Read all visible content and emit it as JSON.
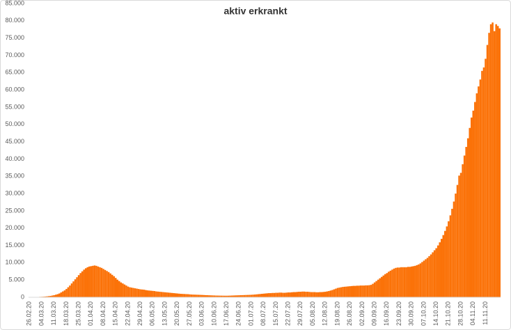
{
  "chart_data": {
    "type": "bar",
    "title": "aktiv erkrankt",
    "color": "#fb7208",
    "categories": [
      "26.02.20",
      null,
      null,
      null,
      null,
      null,
      null,
      "04.03.20",
      null,
      null,
      null,
      null,
      null,
      null,
      "11.03.20",
      null,
      null,
      null,
      null,
      null,
      null,
      "18.03.20",
      null,
      null,
      null,
      null,
      null,
      null,
      "25.03.20",
      null,
      null,
      null,
      null,
      null,
      null,
      "01.04.20",
      null,
      null,
      null,
      null,
      null,
      null,
      "08.04.20",
      null,
      null,
      null,
      null,
      null,
      null,
      "15.04.20",
      null,
      null,
      null,
      null,
      null,
      null,
      "22.04.20",
      null,
      null,
      null,
      null,
      null,
      null,
      "29.04.20",
      null,
      null,
      null,
      null,
      null,
      null,
      "06.05.20",
      null,
      null,
      null,
      null,
      null,
      null,
      "13.05.20",
      null,
      null,
      null,
      null,
      null,
      null,
      "20.05.20",
      null,
      null,
      null,
      null,
      null,
      null,
      "27.05.20",
      null,
      null,
      null,
      null,
      null,
      null,
      "03.06.20",
      null,
      null,
      null,
      null,
      null,
      null,
      "10.06.20",
      null,
      null,
      null,
      null,
      null,
      null,
      "17.06.20",
      null,
      null,
      null,
      null,
      null,
      null,
      "24.06.20",
      null,
      null,
      null,
      null,
      null,
      null,
      "01.07.20",
      null,
      null,
      null,
      null,
      null,
      null,
      "08.07.20",
      null,
      null,
      null,
      null,
      null,
      null,
      "15.07.20",
      null,
      null,
      null,
      null,
      null,
      null,
      "22.07.20",
      null,
      null,
      null,
      null,
      null,
      null,
      "29.07.20",
      null,
      null,
      null,
      null,
      null,
      null,
      "05.08.20",
      null,
      null,
      null,
      null,
      null,
      null,
      "12.08.20",
      null,
      null,
      null,
      null,
      null,
      null,
      "19.08.20",
      null,
      null,
      null,
      null,
      null,
      null,
      "26.08.20",
      null,
      null,
      null,
      null,
      null,
      null,
      "02.09.20",
      null,
      null,
      null,
      null,
      null,
      null,
      "09.09.20",
      null,
      null,
      null,
      null,
      null,
      null,
      "16.09.20",
      null,
      null,
      null,
      null,
      null,
      null,
      "23.09.20",
      null,
      null,
      null,
      null,
      null,
      null,
      "30.09.20",
      null,
      null,
      null,
      null,
      null,
      null,
      "07.10.20",
      null,
      null,
      null,
      null,
      null,
      null,
      "14.10.20",
      null,
      null,
      null,
      null,
      null,
      null,
      "21.10.20",
      null,
      null,
      null,
      null,
      null,
      null,
      "28.10.20",
      null,
      null,
      null,
      null,
      null,
      null,
      "04.11.20",
      null,
      null,
      null,
      null,
      null,
      null,
      "11.11.20",
      null,
      null,
      null,
      null,
      null,
      null,
      null,
      null
    ],
    "values": [
      16,
      18,
      25,
      45,
      60,
      90,
      130,
      150,
      180,
      220,
      270,
      330,
      400,
      500,
      600,
      750,
      900,
      1100,
      1400,
      1700,
      2000,
      2400,
      2900,
      3400,
      4000,
      4600,
      5200,
      5800,
      6400,
      7000,
      7500,
      8000,
      8400,
      8700,
      8900,
      9000,
      9100,
      9200,
      9100,
      8900,
      8700,
      8500,
      8200,
      7900,
      7600,
      7300,
      6900,
      6500,
      6100,
      5600,
      5100,
      4700,
      4300,
      4000,
      3700,
      3400,
      3100,
      2900,
      2800,
      2700,
      2600,
      2500,
      2400,
      2300,
      2250,
      2200,
      2100,
      2000,
      1950,
      1900,
      1850,
      1800,
      1700,
      1650,
      1600,
      1550,
      1500,
      1450,
      1400,
      1350,
      1300,
      1250,
      1200,
      1150,
      1100,
      1050,
      1000,
      980,
      950,
      920,
      900,
      850,
      800,
      780,
      760,
      740,
      720,
      700,
      680,
      650,
      620,
      600,
      580,
      560,
      540,
      520,
      500,
      490,
      480,
      470,
      460,
      450,
      450,
      460,
      480,
      500,
      520,
      540,
      560,
      580,
      600,
      620,
      640,
      660,
      680,
      700,
      720,
      760,
      800,
      850,
      900,
      950,
      1000,
      1050,
      1100,
      1150,
      1200,
      1200,
      1250,
      1250,
      1300,
      1300,
      1350,
      1350,
      1300,
      1300,
      1350,
      1400,
      1400,
      1450,
      1500,
      1500,
      1550,
      1600,
      1600,
      1650,
      1650,
      1600,
      1600,
      1550,
      1500,
      1500,
      1500,
      1450,
      1450,
      1500,
      1500,
      1550,
      1600,
      1700,
      1800,
      1950,
      2100,
      2300,
      2500,
      2700,
      2800,
      2900,
      3000,
      3050,
      3100,
      3150,
      3200,
      3250,
      3300,
      3300,
      3350,
      3350,
      3400,
      3400,
      3400,
      3450,
      3450,
      3500,
      3600,
      3900,
      4300,
      4700,
      5100,
      5500,
      5900,
      6300,
      6700,
      7000,
      7400,
      7700,
      8000,
      8300,
      8500,
      8600,
      8600,
      8700,
      8700,
      8700,
      8700,
      8800,
      8800,
      8900,
      9000,
      9100,
      9300,
      9500,
      9800,
      10200,
      10600,
      11000,
      11400,
      11900,
      12400,
      13000,
      13600,
      14200,
      15000,
      15900,
      16900,
      18000,
      19200,
      20500,
      22000,
      23700,
      25600,
      27700,
      30000,
      32500,
      35200,
      36000,
      38500,
      41000,
      43500,
      46000,
      49000,
      52000,
      54000,
      56500,
      59000,
      61000,
      63000,
      65500,
      66500,
      69000,
      73000,
      76500,
      79000,
      79500,
      77000,
      79000,
      78500,
      77800
    ],
    "ylim": [
      0,
      85000
    ],
    "yticks": [
      0,
      {
        "value": 5000,
        "label": "5.000"
      },
      {
        "value": 10000,
        "label": "10.000"
      },
      {
        "value": 15000,
        "label": "15.000"
      },
      {
        "value": 20000,
        "label": "20.000"
      },
      {
        "value": 25000,
        "label": "25.000"
      },
      {
        "value": 30000,
        "label": "30.000"
      },
      {
        "value": 35000,
        "label": "35.000"
      },
      {
        "value": 40000,
        "label": "40.000"
      },
      {
        "value": 45000,
        "label": "45.000"
      },
      {
        "value": 50000,
        "label": "50.000"
      },
      {
        "value": 55000,
        "label": "55.000"
      },
      {
        "value": 60000,
        "label": "60.000"
      },
      {
        "value": 65000,
        "label": "65.000"
      },
      {
        "value": 70000,
        "label": "70.000"
      },
      {
        "value": 75000,
        "label": "75.000"
      },
      {
        "value": 80000,
        "label": "80.000"
      },
      {
        "value": 85000,
        "label": "85.000"
      }
    ],
    "grid": false
  }
}
